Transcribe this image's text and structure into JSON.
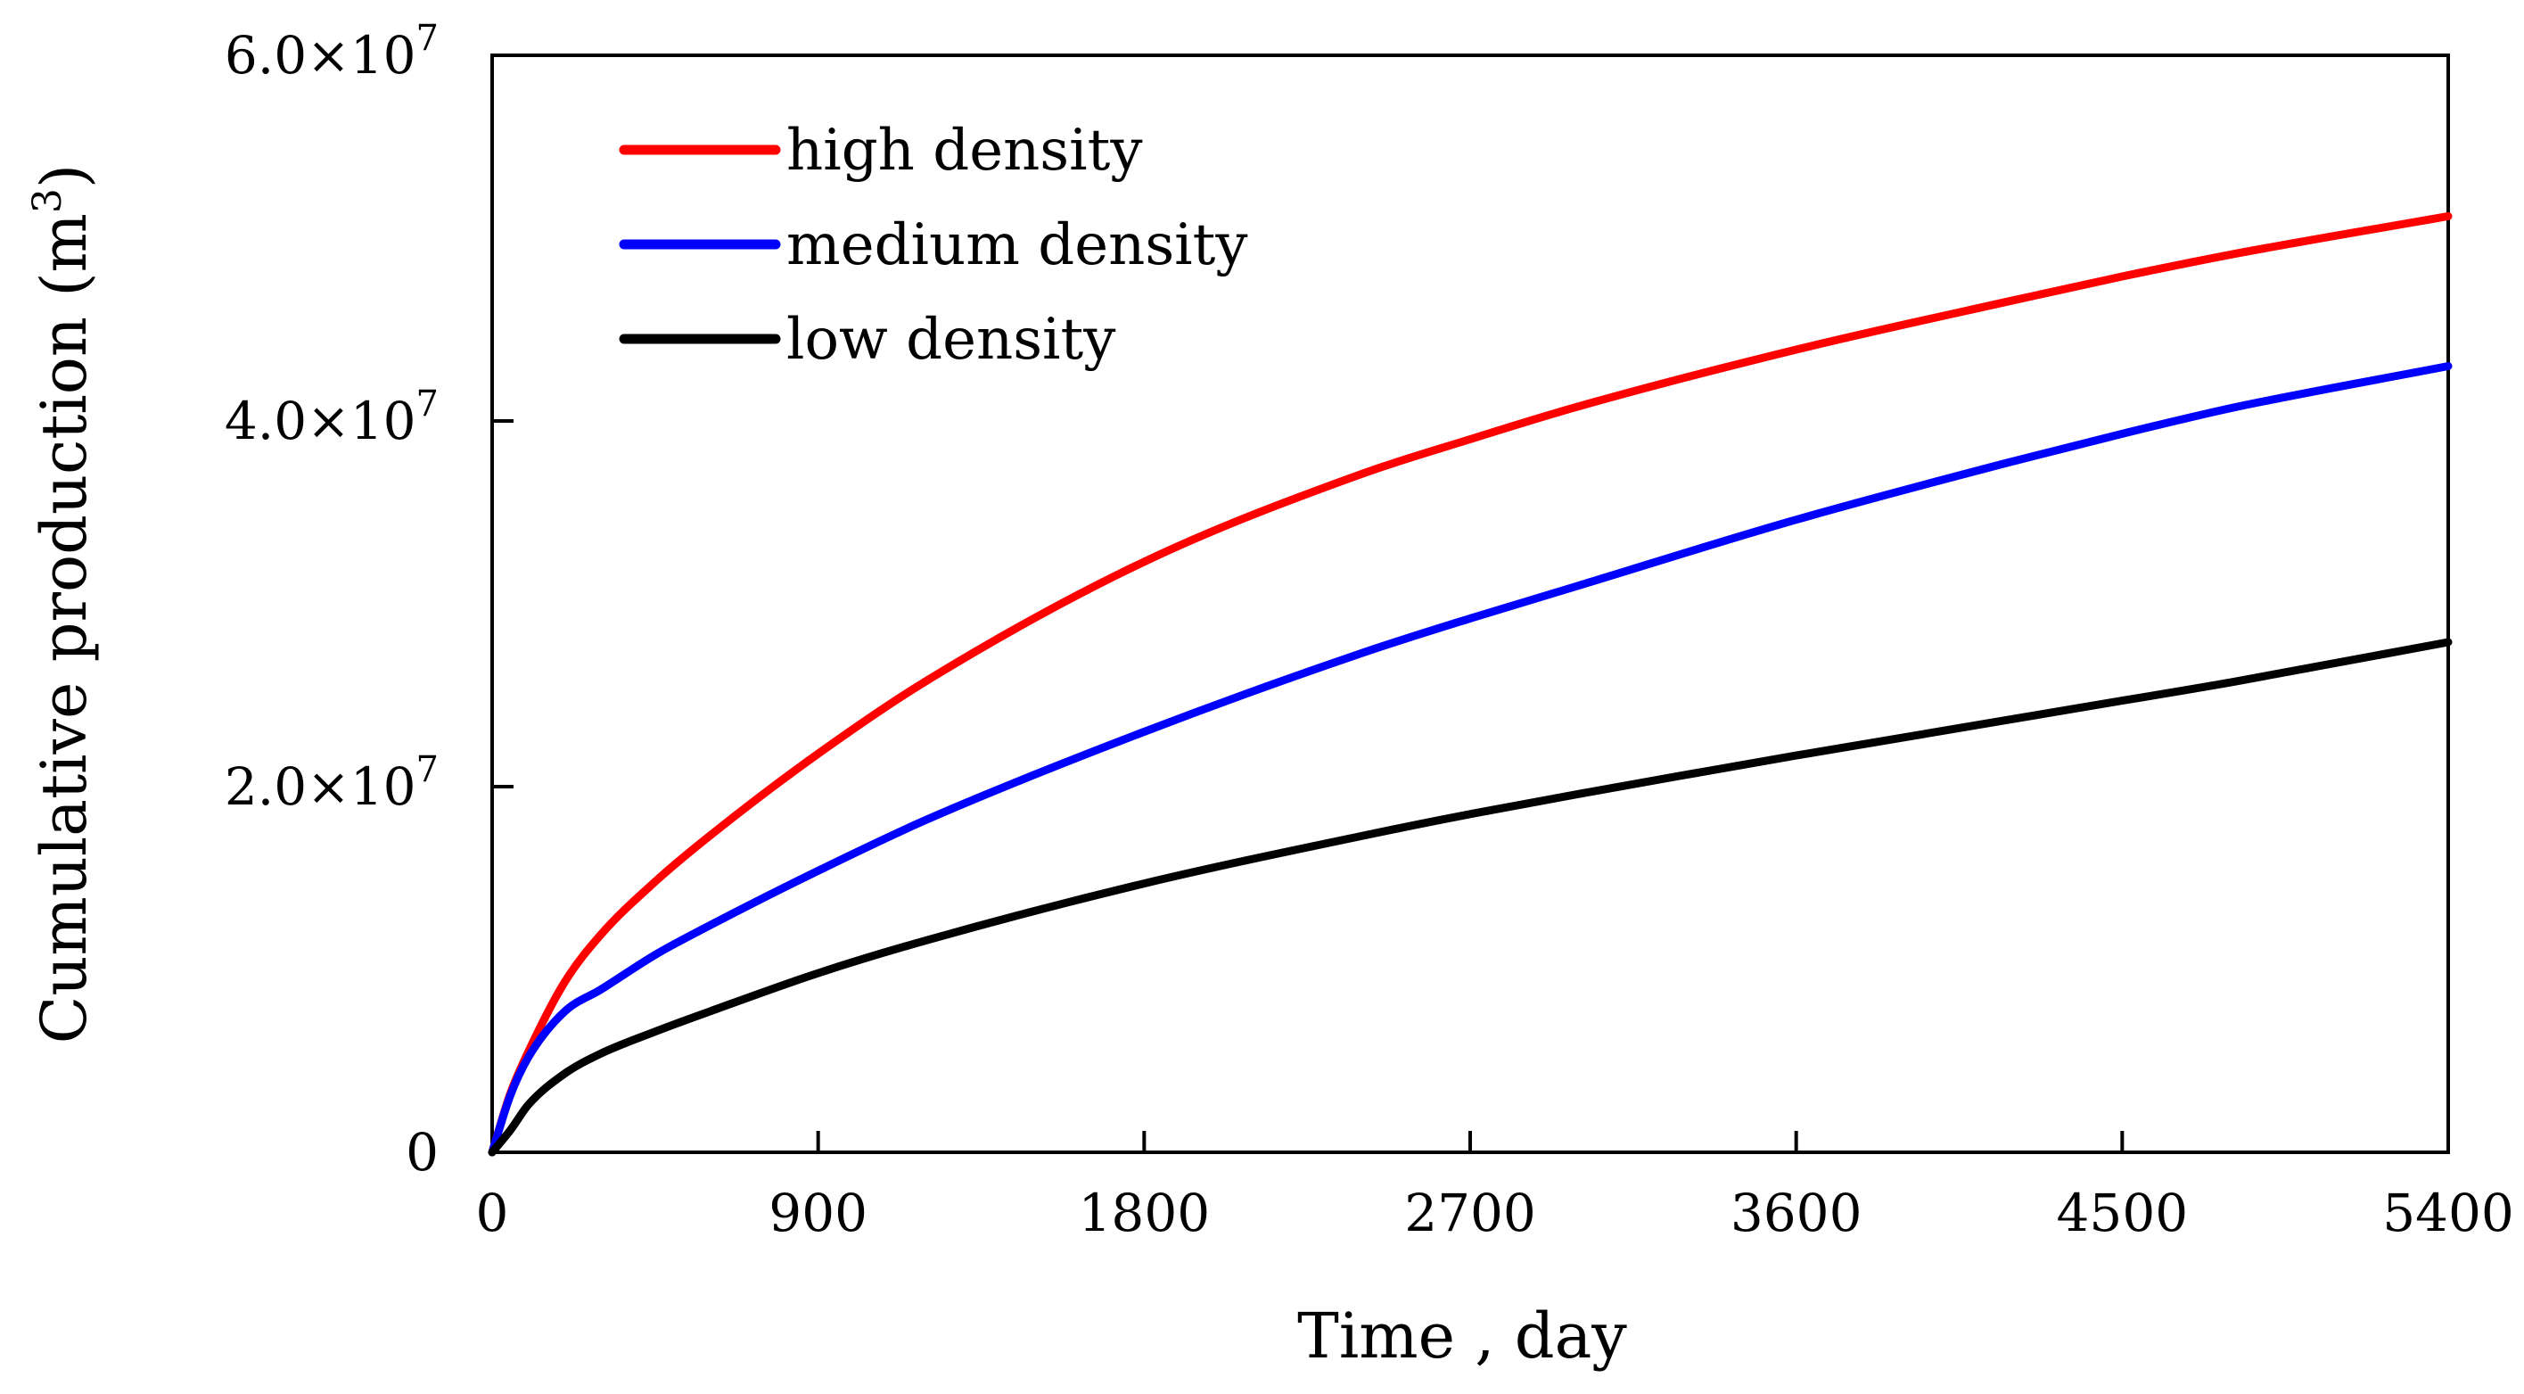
{
  "chart_data": {
    "type": "line",
    "title": "",
    "xlabel": "Time , day",
    "ylabel_main": "Cumulative production (m",
    "ylabel_sup": "3",
    "ylabel_close": ")",
    "xlim": [
      0,
      5400
    ],
    "ylim": [
      0,
      60000000
    ],
    "xticks": [
      0,
      900,
      1800,
      2700,
      3600,
      4500,
      5400
    ],
    "xtick_labels": [
      "0",
      "900",
      "1800",
      "2700",
      "3600",
      "4500",
      "5400"
    ],
    "yticks": [
      0,
      20000000,
      40000000,
      60000000
    ],
    "ytick_labels": [
      {
        "mantissa": "0",
        "exp": ""
      },
      {
        "mantissa": "2.0×10",
        "exp": "7"
      },
      {
        "mantissa": "4.0×10",
        "exp": "7"
      },
      {
        "mantissa": "6.0×10",
        "exp": "7"
      }
    ],
    "grid": false,
    "legend_position": "top-left",
    "series": [
      {
        "name": "high density",
        "color": "#ff0000",
        "x": [
          0,
          50,
          100,
          200,
          300,
          450,
          600,
          900,
          1200,
          1800,
          2400,
          2700,
          3000,
          3600,
          4200,
          4500,
          4800,
          5400
        ],
        "y": [
          0,
          3200000,
          5500000,
          9300000,
          11900000,
          14800000,
          17300000,
          21800000,
          25800000,
          32300000,
          37100000,
          39000000,
          40800000,
          43900000,
          46600000,
          47900000,
          49100000,
          51200000
        ]
      },
      {
        "name": "medium density",
        "color": "#0000ff",
        "x": [
          0,
          50,
          100,
          200,
          300,
          450,
          600,
          900,
          1200,
          1800,
          2400,
          2700,
          3000,
          3600,
          4200,
          4500,
          4800,
          5400
        ],
        "y": [
          0,
          3100000,
          5200000,
          7700000,
          8900000,
          10800000,
          12400000,
          15400000,
          18200000,
          23000000,
          27300000,
          29200000,
          31000000,
          34600000,
          37800000,
          39300000,
          40700000,
          43000000
        ]
      },
      {
        "name": "low density",
        "color": "#000000",
        "x": [
          0,
          50,
          100,
          200,
          300,
          450,
          600,
          900,
          1200,
          1800,
          2400,
          2700,
          3000,
          3600,
          4200,
          4500,
          4800,
          5400
        ],
        "y": [
          0,
          1200000,
          2600000,
          4300000,
          5400000,
          6600000,
          7700000,
          9800000,
          11600000,
          14700000,
          17300000,
          18500000,
          19600000,
          21700000,
          23700000,
          24700000,
          25700000,
          27900000
        ]
      }
    ]
  }
}
